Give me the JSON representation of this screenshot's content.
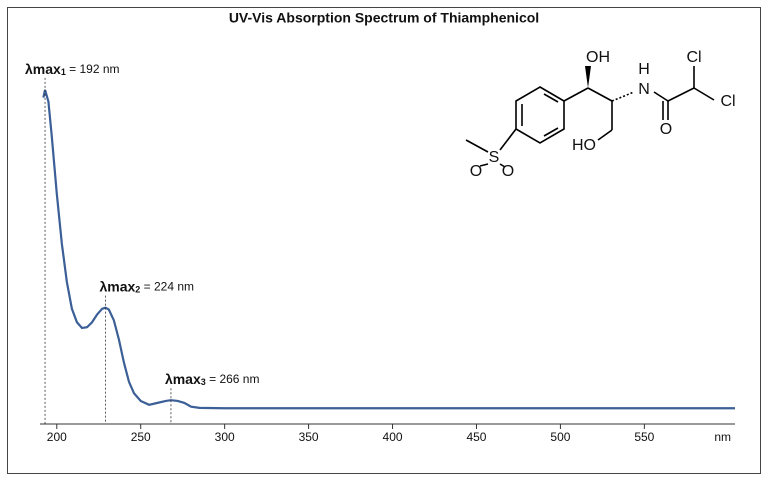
{
  "chart_data": {
    "type": "line",
    "title": "UV-Vis Absorption Spectrum of Thiamphenicol",
    "x": [
      192,
      193,
      195,
      197,
      200,
      203,
      206,
      209,
      212,
      215,
      218,
      221,
      224,
      227,
      229,
      231,
      234,
      237,
      240,
      243,
      246,
      250,
      255,
      260,
      265,
      268,
      272,
      276,
      280,
      285,
      300,
      400,
      604
    ],
    "values": [
      0.85,
      0.87,
      0.84,
      0.75,
      0.6,
      0.47,
      0.37,
      0.3,
      0.265,
      0.25,
      0.252,
      0.265,
      0.285,
      0.3,
      0.303,
      0.298,
      0.27,
      0.22,
      0.16,
      0.11,
      0.08,
      0.06,
      0.05,
      0.055,
      0.06,
      0.062,
      0.06,
      0.055,
      0.045,
      0.042,
      0.041,
      0.041,
      0.041
    ],
    "color": "#3b5f96",
    "xlim": [
      190,
      604
    ],
    "ylim": [
      0,
      1
    ],
    "xticks": [
      200,
      250,
      300,
      350,
      400,
      450,
      500,
      550
    ],
    "x_unit": "nm",
    "annotations": [
      {
        "symbol": "λmax",
        "sub": "1",
        "text": " = 192 nm"
      },
      {
        "symbol": "λmax",
        "sub": "2",
        "text": " = 224 nm"
      },
      {
        "symbol": "λmax",
        "sub": "3",
        "text": " = 266 nm"
      }
    ],
    "structure": {
      "labels": [
        "OH",
        "H",
        "N",
        "Cl",
        "Cl",
        "O",
        "HO",
        "S",
        "O",
        "O"
      ]
    }
  }
}
